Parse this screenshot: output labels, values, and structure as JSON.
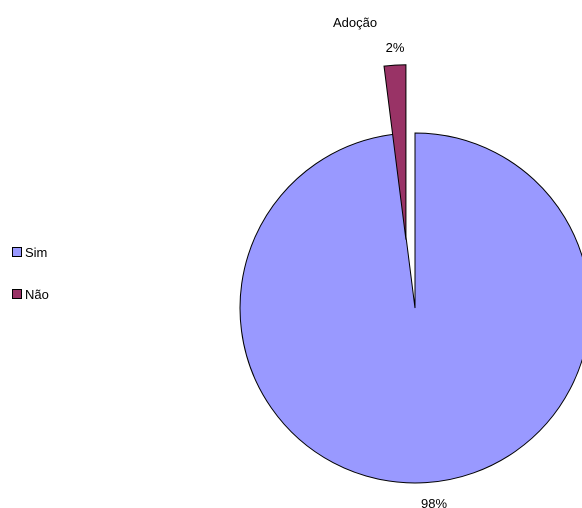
{
  "chart_data": {
    "type": "pie",
    "title": "Adoção",
    "categories": [
      "Sim",
      "Não"
    ],
    "values": [
      98,
      2
    ],
    "labels": [
      "98%",
      "2%"
    ],
    "colors": [
      "#9999ff",
      "#993366"
    ],
    "legend_position": "left"
  }
}
